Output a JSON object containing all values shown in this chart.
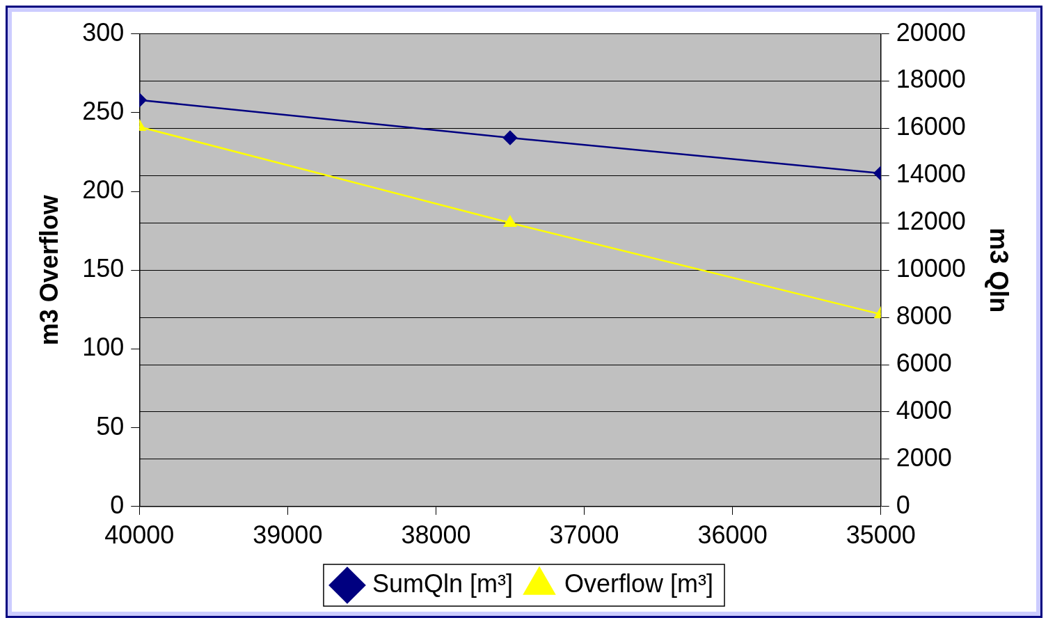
{
  "chart_data": {
    "type": "line",
    "xlabel": null,
    "ylabel": "m3 Overflow",
    "y2label": "m3 Qln",
    "x": [
      40000,
      37500,
      35000
    ],
    "series": [
      {
        "name": "SumQln [m³]",
        "color": "#000080",
        "values": [
          17200,
          15600,
          14100
        ],
        "axis": "y2",
        "marker": "diamond"
      },
      {
        "name": "Overflow [m³]",
        "color": "#ffff00",
        "values": [
          241,
          180,
          122
        ],
        "marker": "triangle"
      }
    ],
    "xlim": [
      40000,
      35000
    ],
    "xticks": [
      40000,
      39000,
      38000,
      37000,
      36000,
      35000
    ],
    "ylim": [
      0,
      300
    ],
    "yticks": [
      0,
      50,
      100,
      150,
      200,
      250,
      300
    ],
    "y2lim": [
      0,
      20000
    ],
    "y2ticks": [
      0,
      2000,
      4000,
      6000,
      8000,
      10000,
      12000,
      14000,
      16000,
      18000,
      20000
    ],
    "grid": "y",
    "legend": "bottom"
  }
}
